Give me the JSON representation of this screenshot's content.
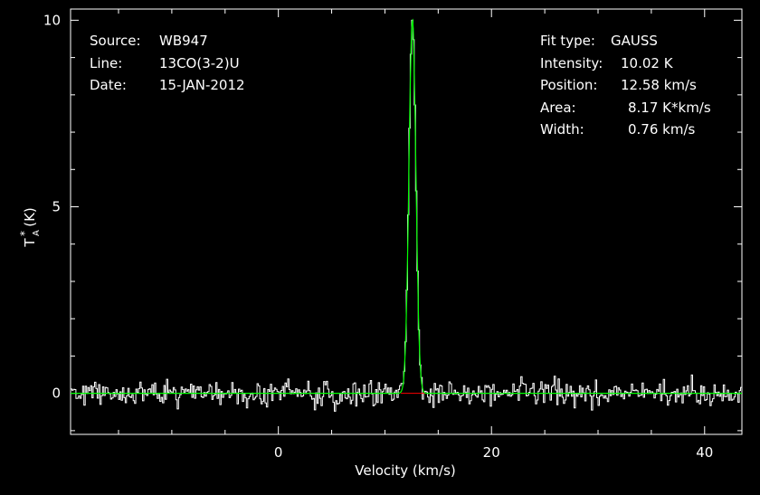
{
  "chart_data": {
    "type": "line",
    "xlabel": "Velocity (km/s)",
    "ylabel": "T",
    "ylabel_sub": "A",
    "ylabel_sup": "*",
    "ylabel_unit": "(K)",
    "xlim": [
      -19.5,
      43.5
    ],
    "ylim": [
      -1.1,
      10.3
    ],
    "x_ticks": [
      0,
      20,
      40
    ],
    "y_ticks": [
      0,
      5,
      10
    ],
    "info_left": [
      {
        "key": "Source:",
        "value": "WB947"
      },
      {
        "key": "Line:",
        "value": "13CO(3-2)U"
      },
      {
        "key": "Date:",
        "value": "15-JAN-2012"
      }
    ],
    "info_right": [
      {
        "key": "Fit type:",
        "value": "GAUSS"
      },
      {
        "key": "Intensity:",
        "value": "10.02 K"
      },
      {
        "key": "Position:",
        "value": "12.58 km/s"
      },
      {
        "key": "Area:",
        "value": "8.17 K*km/s"
      },
      {
        "key": "Width:",
        "value": "0.76 km/s"
      }
    ],
    "series": [
      {
        "style": "histogram",
        "color": "#ffffff",
        "noise_rms": 0.17,
        "channel_width": 0.125
      },
      {
        "style": "line",
        "color": "#00ff00",
        "gaussian": {
          "amplitude": 10.02,
          "center": 12.58,
          "fwhm": 0.76
        }
      },
      {
        "style": "line",
        "color": "#ff0000",
        "baseline": 0,
        "range": [
          11.5,
          14.0
        ]
      }
    ]
  }
}
